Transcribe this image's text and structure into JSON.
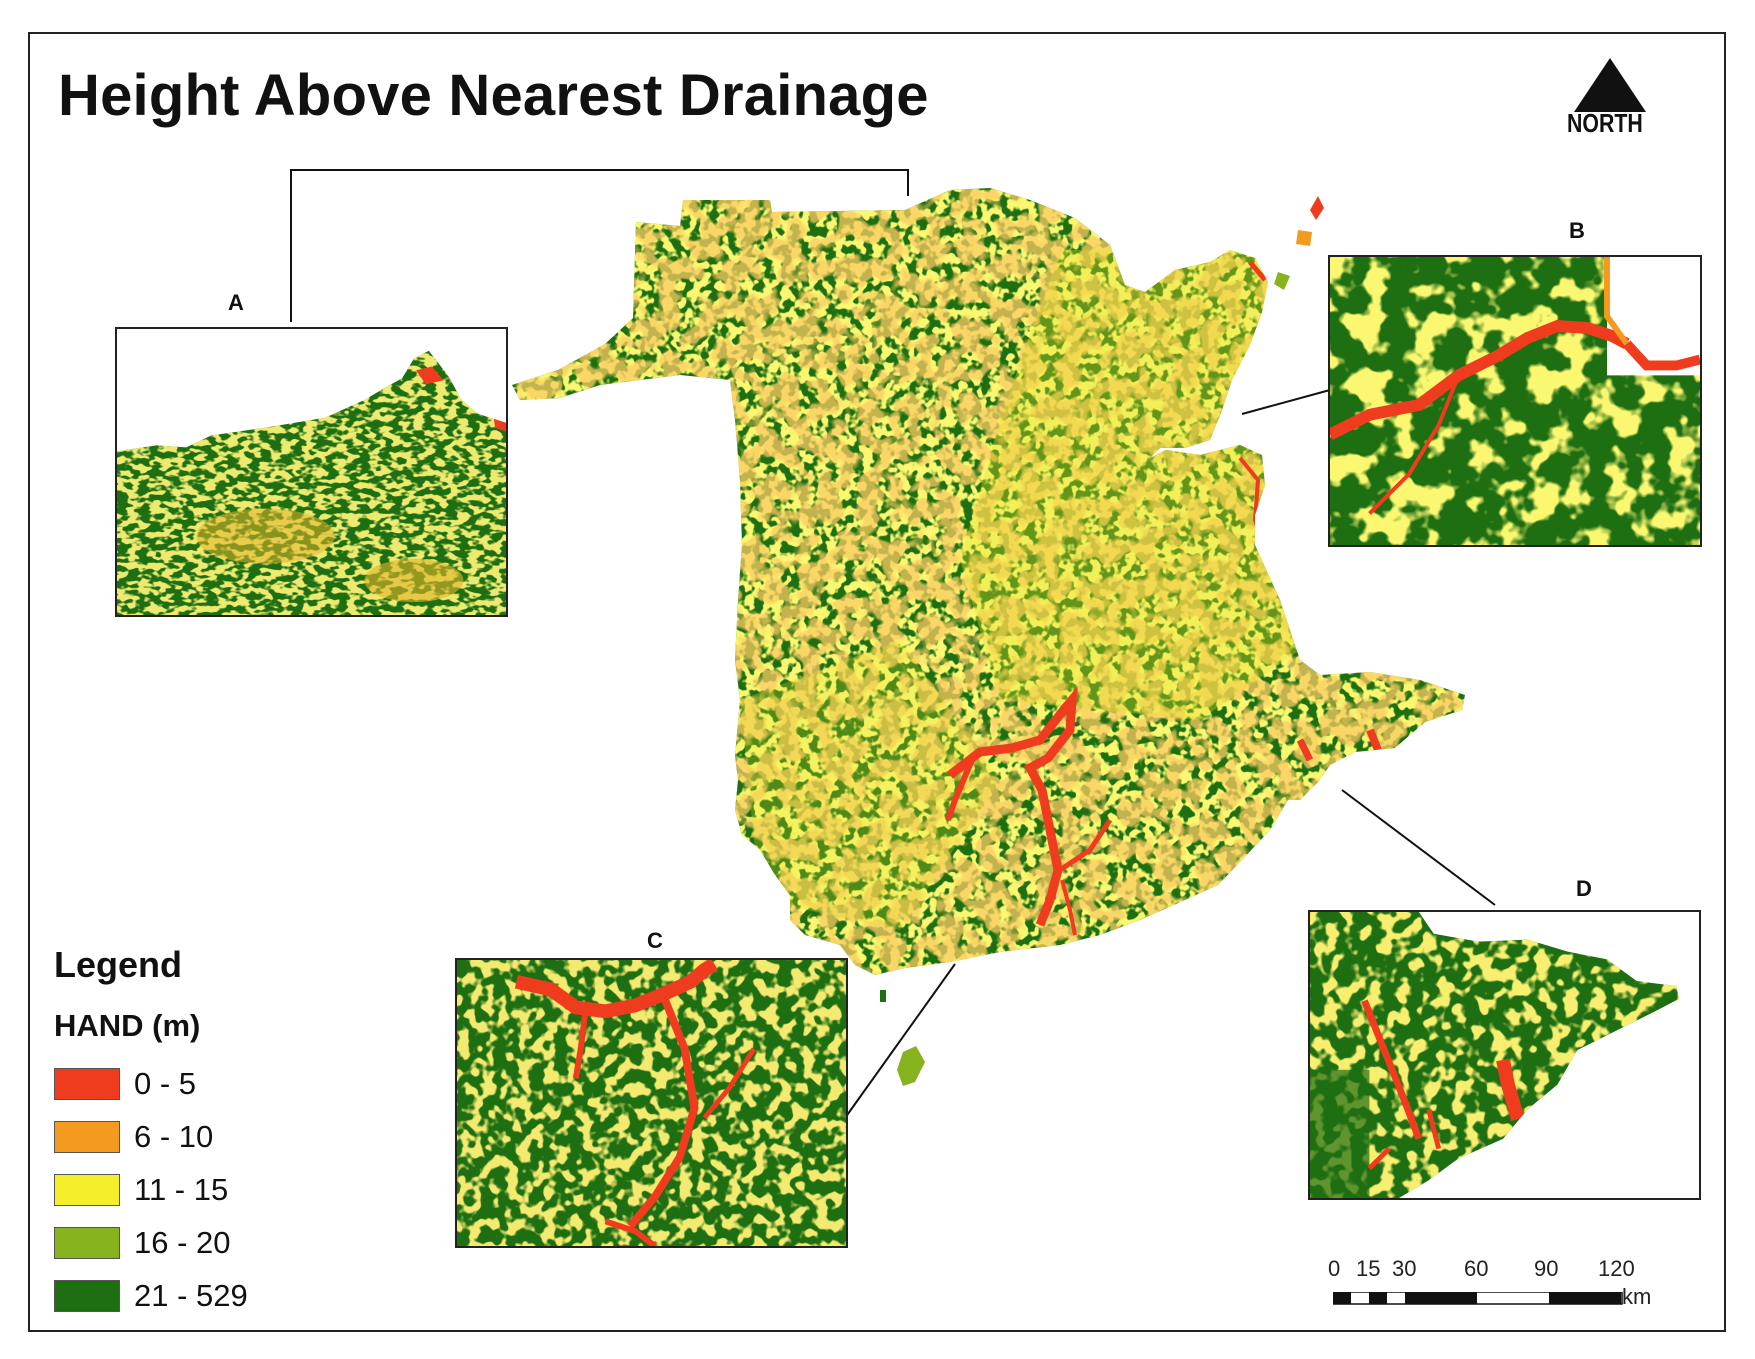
{
  "map": {
    "title": "Height Above Nearest Drainage",
    "north_label": "NORTH",
    "colors": {
      "class_0_5": "#f03c1e",
      "class_6_10": "#f39a1f",
      "class_11_15": "#f4ef2a",
      "class_16_20": "#86b31e",
      "class_21_529": "#1e6e12",
      "ocean": "#ffffff"
    }
  },
  "insets": [
    {
      "id": "A",
      "label": "A"
    },
    {
      "id": "B",
      "label": "B"
    },
    {
      "id": "C",
      "label": "C"
    },
    {
      "id": "D",
      "label": "D"
    }
  ],
  "legend": {
    "title": "Legend",
    "subtitle": "HAND (m)",
    "items": [
      {
        "label": "0 - 5",
        "color": "#f03c1e"
      },
      {
        "label": "6 - 10",
        "color": "#f39a1f"
      },
      {
        "label": "11 - 15",
        "color": "#f4ef2a"
      },
      {
        "label": "16 - 20",
        "color": "#86b31e"
      },
      {
        "label": "21 - 529",
        "color": "#1e6e12"
      }
    ]
  },
  "scale_bar": {
    "ticks": [
      "0",
      "15",
      "30",
      "60",
      "90",
      "120"
    ],
    "unit": "km"
  }
}
